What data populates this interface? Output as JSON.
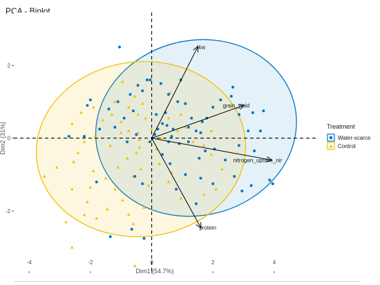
{
  "chart_data": {
    "type": "scatter",
    "title": "PCA - Biplot",
    "xlabel": "Dim1 (54.7%)",
    "ylabel": "Dim2 (31%)",
    "xlim": [
      -4.5,
      5.4
    ],
    "ylim": [
      -3.65,
      3.45
    ],
    "x_ticks": [
      -4,
      -2,
      0,
      2,
      4
    ],
    "y_ticks": [
      -2,
      0,
      2
    ],
    "grid": false,
    "legend": {
      "title": "Treatment",
      "position": "right"
    },
    "series": [
      {
        "name": "Water-scarce",
        "marker": "circle",
        "color": "#0073C2",
        "ellipse": {
          "center": [
            1.45,
            0.28
          ],
          "rx": 3.3,
          "ry": 2.4,
          "angle_deg": -14
        },
        "points": [
          [
            -2.0,
            1.05
          ],
          [
            -2.1,
            0.9
          ],
          [
            -1.4,
            0.8
          ],
          [
            -1.1,
            1.0
          ],
          [
            -0.7,
            1.2
          ],
          [
            -0.45,
            1.45
          ],
          [
            -0.3,
            1.3
          ],
          [
            -0.15,
            1.6
          ],
          [
            -0.05,
            1.6
          ],
          [
            -0.6,
            0.75
          ],
          [
            -0.9,
            0.55
          ],
          [
            -1.7,
            0.25
          ],
          [
            -1.2,
            0.3
          ],
          [
            -0.8,
            -0.1
          ],
          [
            -0.5,
            0.1
          ],
          [
            -2.2,
            0.05
          ],
          [
            -1.05,
            2.5
          ],
          [
            0.3,
            1.5
          ],
          [
            0.55,
            1.2
          ],
          [
            0.85,
            1.0
          ],
          [
            1.1,
            0.95
          ],
          [
            0.45,
            0.7
          ],
          [
            0.15,
            0.65
          ],
          [
            0.35,
            0.4
          ],
          [
            0.7,
            0.25
          ],
          [
            0.5,
            0.35
          ],
          [
            0.2,
            0.25
          ],
          [
            0.1,
            0.1
          ],
          [
            0.55,
            -0.1
          ],
          [
            0.9,
            -0.15
          ],
          [
            1.2,
            -0.1
          ],
          [
            1.45,
            0.2
          ],
          [
            1.65,
            0.45
          ],
          [
            1.8,
            0.55
          ],
          [
            1.3,
            0.55
          ],
          [
            1.6,
            0.15
          ],
          [
            2.0,
            0.85
          ],
          [
            2.25,
            1.05
          ],
          [
            2.6,
            1.15
          ],
          [
            2.85,
            0.65
          ],
          [
            3.3,
            0.7
          ],
          [
            3.65,
            0.75
          ],
          [
            3.55,
            0.2
          ],
          [
            3.15,
            0.2
          ],
          [
            3.35,
            -0.35
          ],
          [
            3.85,
            -1.15
          ],
          [
            3.25,
            -1.3
          ],
          [
            2.85,
            -0.2
          ],
          [
            2.05,
            -0.3
          ],
          [
            1.75,
            -0.35
          ],
          [
            2.4,
            -0.6
          ],
          [
            2.7,
            -1.05
          ],
          [
            2.95,
            -1.45
          ],
          [
            1.45,
            -1.8
          ],
          [
            2.0,
            -1.25
          ],
          [
            1.6,
            -1.1
          ],
          [
            0.6,
            -0.7
          ],
          [
            0.35,
            -0.45
          ],
          [
            -0.3,
            -1.25
          ],
          [
            -0.65,
            -2.5
          ],
          [
            -0.25,
            -2.75
          ],
          [
            -1.35,
            -2.7
          ],
          [
            -1.8,
            -1.2
          ],
          [
            -0.55,
            -1.05
          ],
          [
            0.8,
            -1.4
          ],
          [
            1.1,
            -1.0
          ],
          [
            0.95,
            1.6
          ],
          [
            1.2,
            0.3
          ],
          [
            0.65,
            0.05
          ],
          [
            1.55,
            -0.55
          ],
          [
            2.65,
            1.4
          ],
          [
            -0.05,
            -0.1
          ],
          [
            3.95,
            -1.25
          ],
          [
            -2.7,
            0.05
          ]
        ]
      },
      {
        "name": "Control",
        "marker": "triangle",
        "color": "#EFC000",
        "ellipse": {
          "center": [
            -0.35,
            -0.3
          ],
          "rx": 3.42,
          "ry": 2.4,
          "angle_deg": -5
        },
        "points": [
          [
            -2.6,
            -3.0
          ],
          [
            -2.8,
            -2.3
          ],
          [
            -2.2,
            -2.1
          ],
          [
            -2.1,
            -1.75
          ],
          [
            -2.0,
            -1.35
          ],
          [
            -1.9,
            -0.9
          ],
          [
            -1.5,
            -1.1
          ],
          [
            -1.2,
            -1.4
          ],
          [
            -1.1,
            -0.8
          ],
          [
            -0.8,
            -0.55
          ],
          [
            -0.5,
            -0.4
          ],
          [
            -0.35,
            -0.85
          ],
          [
            -0.1,
            -1.3
          ],
          [
            -0.25,
            -1.9
          ],
          [
            -0.75,
            -2.1
          ],
          [
            -0.6,
            -2.35
          ],
          [
            -0.95,
            -1.7
          ],
          [
            -1.45,
            -1.95
          ],
          [
            -1.8,
            -2.2
          ],
          [
            -2.6,
            -1.4
          ],
          [
            -3.5,
            -1.05
          ],
          [
            -3.1,
            -0.8
          ],
          [
            -2.4,
            -0.4
          ],
          [
            -2.2,
            -0.1
          ],
          [
            -1.85,
            0.05
          ],
          [
            -1.6,
            0.5
          ],
          [
            -1.3,
            0.65
          ],
          [
            -1.0,
            0.45
          ],
          [
            -0.75,
            0.2
          ],
          [
            -0.45,
            0.65
          ],
          [
            -0.3,
            0.95
          ],
          [
            -0.75,
            0.85
          ],
          [
            -1.2,
            1.0
          ],
          [
            -1.9,
            0.85
          ],
          [
            -2.3,
            0.7
          ],
          [
            -2.6,
            0.4
          ],
          [
            -0.95,
            1.55
          ],
          [
            -0.55,
            1.15
          ],
          [
            -0.2,
            0.55
          ],
          [
            0.0,
            0.25
          ],
          [
            0.3,
            0.0
          ],
          [
            0.55,
            0.55
          ],
          [
            0.85,
            0.2
          ],
          [
            1.1,
            0.3
          ],
          [
            1.35,
            -0.1
          ],
          [
            1.7,
            -0.2
          ],
          [
            1.95,
            -0.45
          ],
          [
            2.3,
            -0.85
          ],
          [
            2.1,
            -1.4
          ],
          [
            1.7,
            -1.55
          ],
          [
            0.95,
            -1.65
          ],
          [
            0.55,
            -1.2
          ],
          [
            0.25,
            -0.7
          ],
          [
            -0.1,
            -0.1
          ],
          [
            -0.4,
            -0.05
          ],
          [
            -1.0,
            0.15
          ],
          [
            -1.35,
            -0.2
          ],
          [
            -0.6,
            -1.05
          ],
          [
            -2.55,
            -0.65
          ],
          [
            -0.55,
            -3.5
          ],
          [
            0.6,
            1.25
          ],
          [
            0.95,
            0.65
          ],
          [
            0.65,
            -0.95
          ],
          [
            1.95,
            0.2
          ],
          [
            -0.45,
            0.15
          ],
          [
            -0.4,
            -0.25
          ],
          [
            0.15,
            -0.3
          ]
        ]
      }
    ],
    "variables": [
      {
        "name": "tkw",
        "x": 1.5,
        "y": 2.5
      },
      {
        "name": "grain_yield",
        "x": 3.0,
        "y": 0.9
      },
      {
        "name": "nitrogen_uptake_nir",
        "x": 3.9,
        "y": -0.6
      },
      {
        "name": "protein",
        "x": 1.6,
        "y": -2.45
      }
    ],
    "origin_lines": "dashed"
  }
}
